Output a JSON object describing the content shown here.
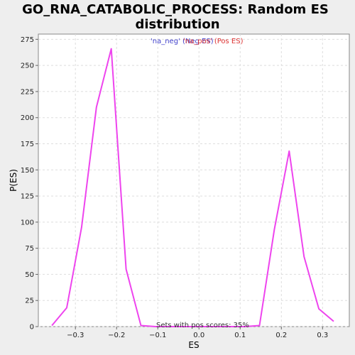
{
  "chart_data": {
    "type": "line",
    "title_line1": "GO_RNA_CATABOLIC_PROCESS: Random ES",
    "title_line2": "distribution",
    "xlabel": "ES",
    "ylabel": "P(ES)",
    "xlim": [
      -0.39,
      0.365
    ],
    "ylim": [
      0,
      280
    ],
    "xticks": [
      -0.3,
      -0.2,
      -0.1,
      0.0,
      0.1,
      0.2,
      0.3
    ],
    "xtick_labels": [
      "−0.3",
      "−0.2",
      "−0.1",
      "0.0",
      "0.1",
      "0.2",
      "0.3"
    ],
    "yticks": [
      0,
      25,
      50,
      75,
      100,
      125,
      150,
      175,
      200,
      225,
      250,
      275
    ],
    "ytick_labels": [
      "0",
      "25",
      "50",
      "75",
      "100",
      "125",
      "150",
      "175",
      "200",
      "225",
      "250",
      "275"
    ],
    "grid": true,
    "legend": {
      "placement": "top-center",
      "entries": [
        {
          "label": "'na_neg' (Neg ES)",
          "color": "#4444cc"
        },
        {
          "label": "'na_pos' (Pos ES)",
          "color": "#dd3333"
        }
      ]
    },
    "series": [
      {
        "color": "#ee44ee",
        "x": [
          -0.357,
          -0.321,
          -0.285,
          -0.249,
          -0.213,
          -0.177,
          -0.141,
          -0.105,
          -0.069,
          0.003,
          0.075,
          0.111,
          0.147,
          0.183,
          0.219,
          0.255,
          0.291,
          0.327
        ],
        "y": [
          1,
          18,
          95,
          210,
          266,
          55,
          1,
          0,
          0,
          0,
          0,
          0,
          1,
          93,
          168,
          67,
          17,
          5
        ]
      }
    ],
    "annotation": "Sets with pos scores: 35%"
  }
}
